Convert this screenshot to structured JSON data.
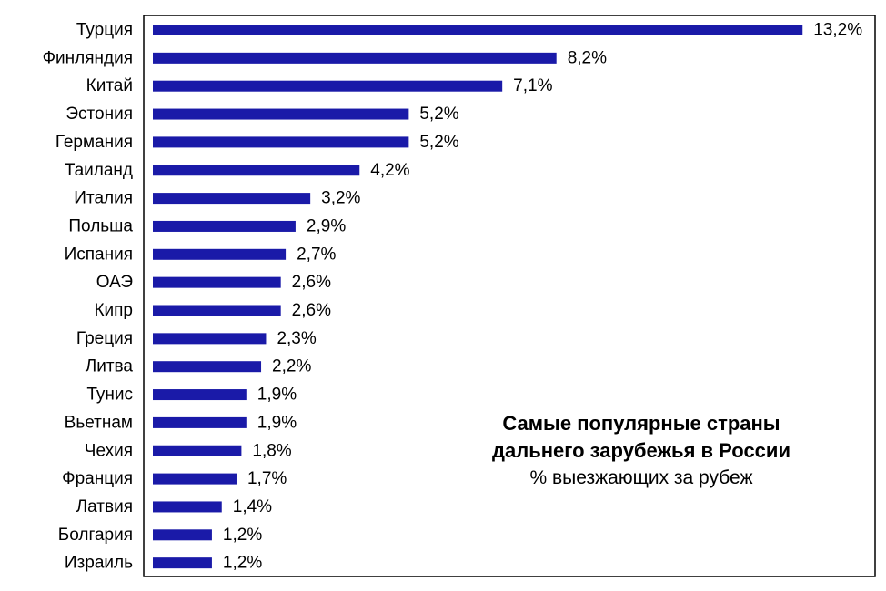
{
  "chart_data": {
    "type": "bar",
    "orientation": "horizontal",
    "title": "Самые популярные страны дальнего зарубежья в России",
    "title_lines": [
      "Самые популярные страны",
      "дальнего зарубежья в России"
    ],
    "subtitle": "% выезжающих за рубеж",
    "categories": [
      "Турция",
      "Финляндия",
      "Китай",
      "Эстония",
      "Германия",
      "Таиланд",
      "Италия",
      "Польша",
      "Испания",
      "ОАЭ",
      "Кипр",
      "Греция",
      "Литва",
      "Тунис",
      "Вьетнам",
      "Чехия",
      "Франция",
      "Латвия",
      "Болгария",
      "Израиль"
    ],
    "values": [
      13.2,
      8.2,
      7.1,
      5.2,
      5.2,
      4.2,
      3.2,
      2.9,
      2.7,
      2.6,
      2.6,
      2.3,
      2.2,
      1.9,
      1.9,
      1.8,
      1.7,
      1.4,
      1.2,
      1.2
    ],
    "value_labels": [
      "13,2%",
      "8,2%",
      "7,1%",
      "5,2%",
      "5,2%",
      "4,2%",
      "3,2%",
      "2,9%",
      "2,7%",
      "2,6%",
      "2,6%",
      "2,3%",
      "2,2%",
      "1,9%",
      "1,9%",
      "1,8%",
      "1,7%",
      "1,4%",
      "1,2%",
      "1,2%"
    ],
    "xlim": [
      0,
      14.6
    ],
    "grid": false,
    "legend": "none",
    "bar_color": "#1a1aa8"
  }
}
